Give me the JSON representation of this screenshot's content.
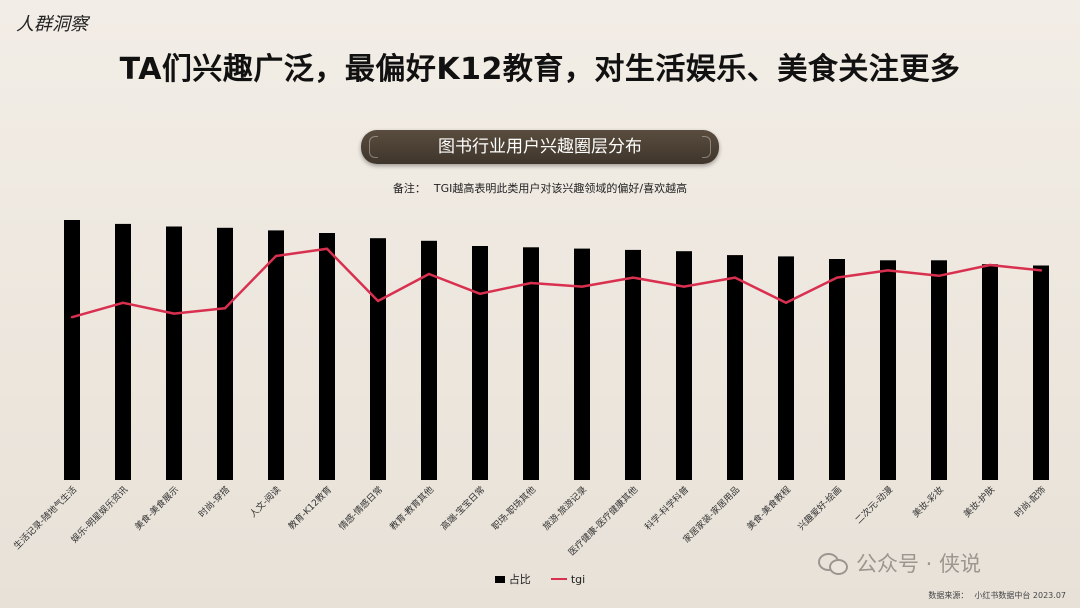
{
  "header": {
    "section_label": "人群洞察",
    "title": "TA们兴趣广泛，最偏好K12教育，对生活娱乐、美食关注更多"
  },
  "banner": {
    "label": "图书行业用户兴趣圈层分布"
  },
  "note": {
    "prefix": "备注：",
    "text": "TGI越高表明此类用户对该兴趣领域的偏好/喜欢越高"
  },
  "legend": {
    "bar_label": "占比",
    "line_label": "tgi"
  },
  "source": {
    "label": "数据来源：",
    "text": "小红书数据中台  2023.07"
  },
  "watermark": {
    "text": "公众号 · 侠说"
  },
  "colors": {
    "bar": "#000000",
    "line": "#d9304f"
  },
  "chart_data": {
    "type": "bar",
    "categories": [
      "生活记录-随地气生活",
      "娱乐-明星娱乐资讯",
      "美食-美食展示",
      "时尚-穿搭",
      "人文-阅读",
      "教育-K12教育",
      "情感-情感日常",
      "教育-教育其他",
      "高端-宝宝日常",
      "职场-职场其他",
      "旅游-旅游记录",
      "医疗健康-医疗健康其他",
      "科学-科学科普",
      "家居家装-家居用品",
      "美食-美食教程",
      "兴趣爱好-绘画",
      "二次元-动漫",
      "美妆-彩妆",
      "美妆-护肤",
      "时尚-配饰"
    ],
    "series": [
      {
        "name": "占比",
        "type": "bar",
        "values": [
          100,
          98.5,
          97.5,
          97,
          96,
          95,
          93,
          92,
          90,
          89.5,
          89,
          88.5,
          88,
          86.5,
          86,
          85,
          84.5,
          84.5,
          83,
          82.5
        ]
      },
      {
        "name": "tgi",
        "type": "line",
        "values": [
          46,
          54,
          48,
          51,
          80,
          84,
          55,
          70,
          59,
          65,
          63,
          68,
          63,
          68,
          54,
          68,
          72,
          69,
          75,
          72
        ]
      }
    ],
    "ylim": [
      0,
      100
    ],
    "grid": false,
    "legend_position": "bottom"
  }
}
